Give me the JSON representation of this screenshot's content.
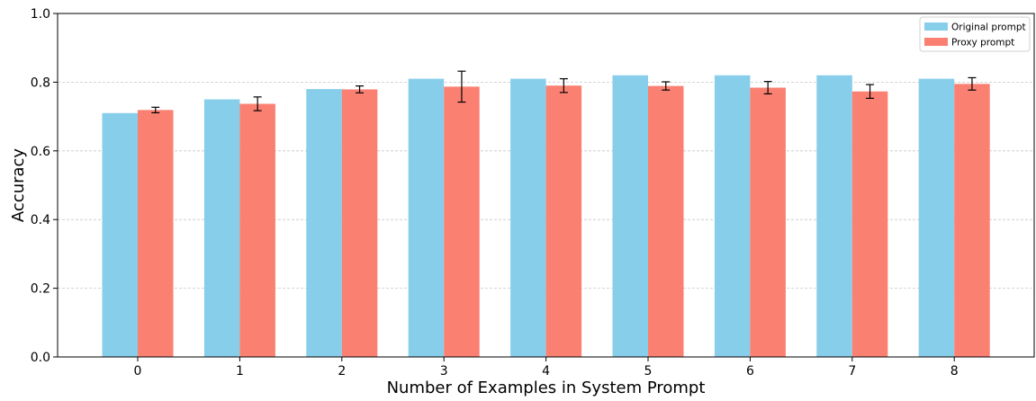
{
  "chart_data": {
    "type": "bar",
    "xlabel": "Number of Examples in System Prompt",
    "ylabel": "Accuracy",
    "categories": [
      "0",
      "1",
      "2",
      "3",
      "4",
      "5",
      "6",
      "7",
      "8"
    ],
    "ylim": [
      0.0,
      1.0
    ],
    "yticks": [
      "0.0",
      "0.2",
      "0.4",
      "0.6",
      "0.8",
      "1.0"
    ],
    "grid": "horizontal dashed",
    "legend_position": "top-right",
    "series": [
      {
        "name": "Original prompt",
        "color": "#87ceeb",
        "values": [
          0.71,
          0.75,
          0.78,
          0.81,
          0.81,
          0.82,
          0.82,
          0.82,
          0.81
        ]
      },
      {
        "name": "Proxy prompt",
        "color": "#fa8072",
        "values": [
          0.719,
          0.737,
          0.779,
          0.787,
          0.79,
          0.789,
          0.784,
          0.773,
          0.795
        ],
        "errors": [
          0.008,
          0.02,
          0.01,
          0.045,
          0.02,
          0.012,
          0.018,
          0.02,
          0.018
        ]
      }
    ]
  }
}
